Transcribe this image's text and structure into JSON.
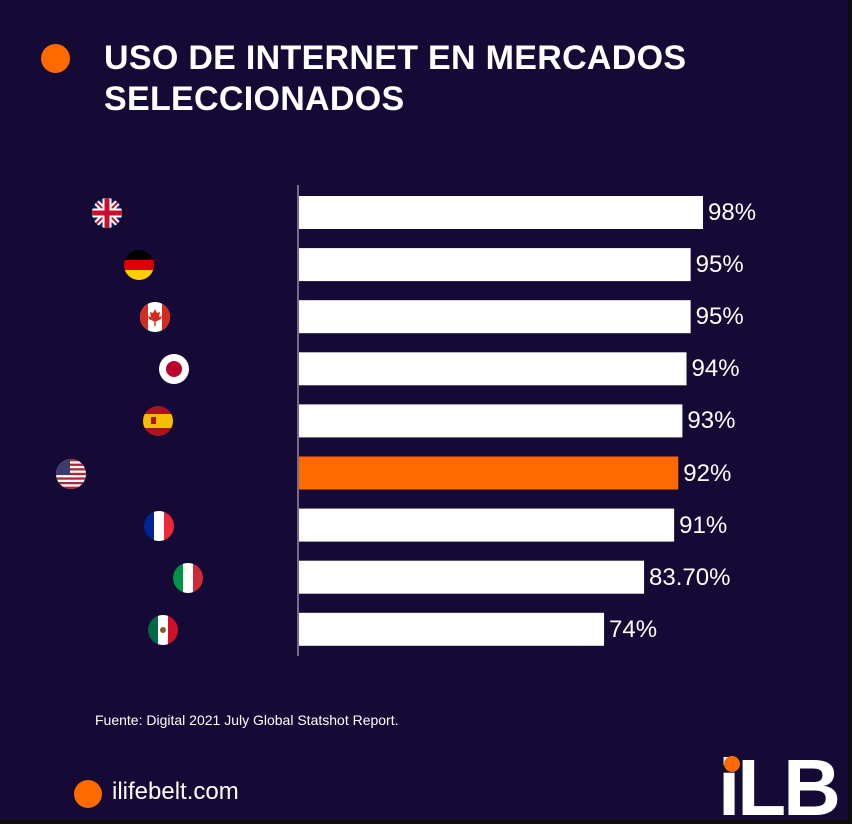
{
  "title": "USO DE INTERNET EN MERCADOS SELECCIONADOS",
  "source": "Fuente: Digital 2021  July Global Statshot Report.",
  "website": "ilifebelt.com",
  "logo_text": "iLB",
  "colors": {
    "background": "#150a35",
    "bar_default": "#ffffff",
    "bar_highlight": "#ff6a00",
    "accent": "#ff6a00"
  },
  "chart_data": {
    "type": "bar",
    "orientation": "horizontal",
    "categories": [
      "Reino Unido",
      "Alemania",
      "Canadá",
      "Japón",
      "España",
      "Estados Unidos",
      "Francia",
      "Italia",
      "México"
    ],
    "values": [
      98,
      95,
      95,
      94,
      93,
      92,
      91,
      83.7,
      74
    ],
    "value_labels": [
      "98%",
      "95%",
      "95%",
      "94%",
      "93%",
      "92%",
      "91%",
      "83.70%",
      "74%"
    ],
    "flag_icons": [
      "uk-flag-icon",
      "germany-flag-icon",
      "canada-flag-icon",
      "japan-flag-icon",
      "spain-flag-icon",
      "usa-flag-icon",
      "france-flag-icon",
      "italy-flag-icon",
      "mexico-flag-icon"
    ],
    "highlight": "Estados Unidos",
    "xlim": [
      0,
      98
    ],
    "grid": false,
    "legend": "none"
  }
}
